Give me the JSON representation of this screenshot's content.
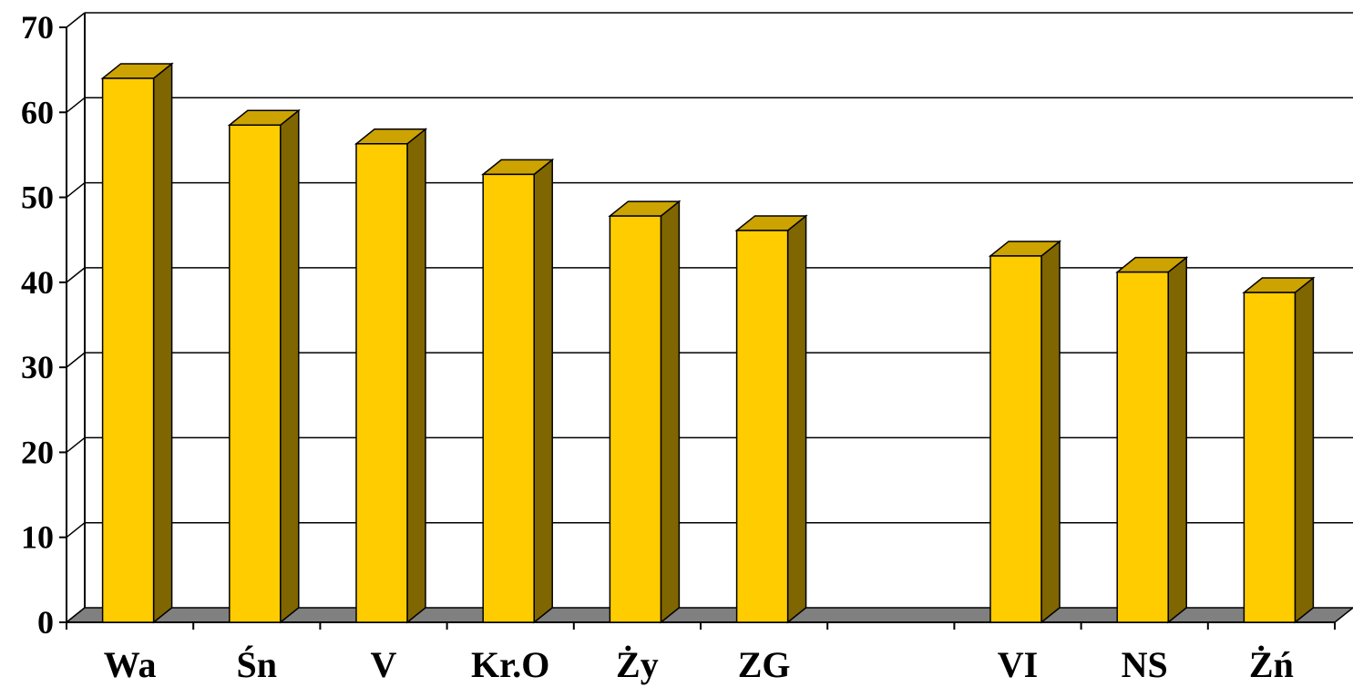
{
  "chart_data": {
    "type": "bar",
    "title": "",
    "xlabel": "",
    "ylabel": "",
    "categories": [
      "Wa",
      "Śn",
      "V",
      "Kr.O",
      "Ży",
      "ZG",
      "",
      "VI",
      "NS",
      "Żń"
    ],
    "values": [
      64,
      58.5,
      56.3,
      52.7,
      47.8,
      46.1,
      null,
      43.1,
      41.2,
      38.8
    ],
    "ylim": [
      0,
      70
    ],
    "yticks": [
      "0",
      "10",
      "20",
      "30",
      "40",
      "50",
      "60",
      "70"
    ],
    "grid": true,
    "legend": "none",
    "style": "3d-column"
  },
  "colors": {
    "bar_front": "#FFCC00",
    "bar_side": "#806600",
    "bar_top": "#CCA300",
    "floor": "#808080",
    "grid": "#000000"
  }
}
